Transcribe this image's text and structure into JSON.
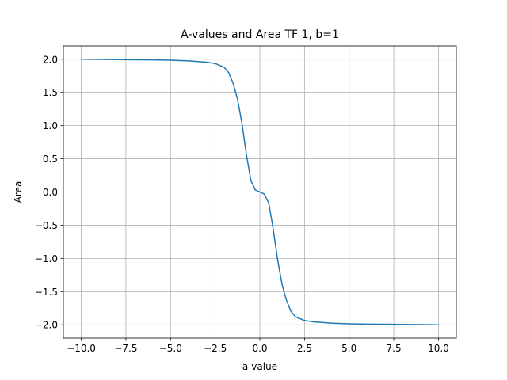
{
  "chart_data": {
    "type": "line",
    "title": "A-values and Area TF 1, b=1",
    "xlabel": "a-value",
    "ylabel": "Area",
    "xlim": [
      -11.0,
      11.0
    ],
    "ylim": [
      -2.2,
      2.2
    ],
    "grid": true,
    "xticks": [
      -10.0,
      -7.5,
      -5.0,
      -2.5,
      0.0,
      2.5,
      5.0,
      7.5,
      10.0
    ],
    "xtick_labels": [
      "−10.0",
      "−7.5",
      "−5.0",
      "−2.5",
      "0.0",
      "2.5",
      "5.0",
      "7.5",
      "10.0"
    ],
    "yticks": [
      -2.0,
      -1.5,
      -1.0,
      -0.5,
      0.0,
      0.5,
      1.0,
      1.5,
      2.0
    ],
    "ytick_labels": [
      "−2.0",
      "−1.5",
      "−1.0",
      "−0.5",
      "0.0",
      "0.5",
      "1.0",
      "1.5",
      "2.0"
    ],
    "series": [
      {
        "name": "Area",
        "color": "#1f77b4",
        "x": [
          -10,
          -8,
          -6,
          -5,
          -4,
          -3,
          -2.5,
          -2,
          -1.75,
          -1.5,
          -1.25,
          -1,
          -0.75,
          -0.5,
          -0.25,
          0,
          0.25,
          0.5,
          0.75,
          1,
          1.25,
          1.5,
          1.75,
          2,
          2.5,
          3,
          4,
          5,
          6,
          8,
          10
        ],
        "y": [
          2.0,
          1.995,
          1.99,
          1.985,
          1.975,
          1.955,
          1.935,
          1.88,
          1.8,
          1.64,
          1.4,
          1.03,
          0.56,
          0.17,
          0.03,
          0.0,
          -0.03,
          -0.17,
          -0.56,
          -1.03,
          -1.4,
          -1.64,
          -1.8,
          -1.88,
          -1.935,
          -1.955,
          -1.975,
          -1.985,
          -1.99,
          -1.995,
          -2.0
        ]
      }
    ]
  }
}
